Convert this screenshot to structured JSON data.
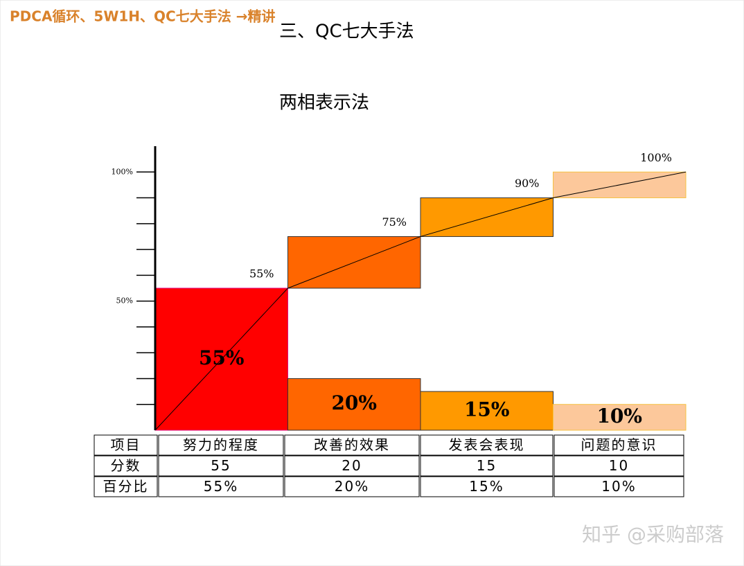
{
  "header": "PDCA循环、5W1H、QC七大手法 →精讲",
  "title": "三、QC七大手法",
  "subtitle": "两相表示法",
  "watermark": "知乎 @采购部落",
  "chart_data": {
    "type": "bar",
    "categories": [
      "努力的程度",
      "改善的效果",
      "发表会表现",
      "问题的意识"
    ],
    "values": [
      55,
      20,
      15,
      10
    ],
    "value_labels": [
      "55%",
      "20%",
      "15%",
      "10%"
    ],
    "cumulative": [
      55,
      75,
      90,
      100
    ],
    "cumulative_labels": [
      "55%",
      "75%",
      "90%",
      "100%"
    ],
    "colors": [
      "#ff0000",
      "#ff6600",
      "#ff9900",
      "#fcc89b"
    ],
    "ylim": [
      0,
      110
    ],
    "yticks": [
      {
        "value": 10,
        "label": null
      },
      {
        "value": 20,
        "label": null
      },
      {
        "value": 30,
        "label": null
      },
      {
        "value": 40,
        "label": null
      },
      {
        "value": 50,
        "label": "50%"
      },
      {
        "value": 60,
        "label": null
      },
      {
        "value": 70,
        "label": null
      },
      {
        "value": 80,
        "label": null
      },
      {
        "value": 90,
        "label": null
      },
      {
        "value": 100,
        "label": "100%"
      }
    ]
  },
  "table": {
    "row_labels": [
      "项目",
      "分数",
      "百分比"
    ]
  }
}
